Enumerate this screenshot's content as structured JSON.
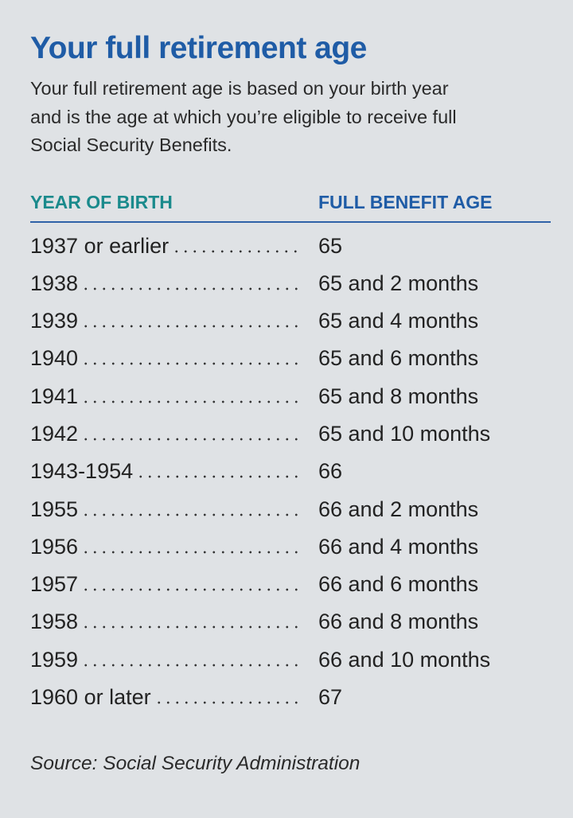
{
  "title": "Your full retirement age",
  "description": [
    "Your full retirement age is based on your birth year",
    "and is the age at which you’re eligible to receive full",
    "Social Security Benefits."
  ],
  "table": {
    "header": [
      "YEAR OF BIRTH",
      "FULL BENEFIT AGE"
    ],
    "rows": [
      [
        "1937 or earlier",
        "65"
      ],
      [
        "1938",
        "65 and 2 months"
      ],
      [
        "1939",
        "65 and 4 months"
      ],
      [
        "1940",
        "65 and 6 months"
      ],
      [
        "1941",
        "65 and 8 months"
      ],
      [
        "1942",
        "65 and 10 months"
      ],
      [
        "1943-1954",
        "66"
      ],
      [
        "1955",
        "66 and 2 months"
      ],
      [
        "1956",
        "66 and 4 months"
      ],
      [
        "1957",
        "66 and 6 months"
      ],
      [
        "1958",
        "66 and 8 months"
      ],
      [
        "1959",
        "66 and 10 months"
      ],
      [
        "1960 or later",
        "67"
      ]
    ]
  },
  "source": "Source: Social Security Administration"
}
